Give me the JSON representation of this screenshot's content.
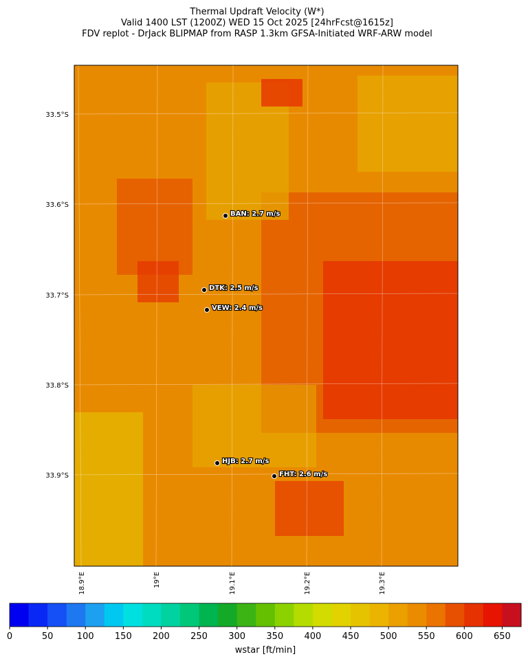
{
  "header": {
    "title_lines": [
      "Thermal Updraft Velocity (W*)",
      "Valid 1400 LST (1200Z) WED 15 Oct 2025 [24hrFcst@1615z]",
      "FDV replot - DrJack BLIPMAP from RASP 1.3km GFSA-Initiated WRF-ARW model"
    ]
  },
  "map": {
    "lat_labels": [
      "33.5°S",
      "33.6°S",
      "33.7°S",
      "33.8°S",
      "33.9°S"
    ],
    "lon_labels": [
      "18.9°E",
      "19°E",
      "19.1°E",
      "19.2°E",
      "19.3°E"
    ],
    "stations": [
      {
        "label": "BAN: 2.7 m/s"
      },
      {
        "label": "DTK: 2.5 m/s"
      },
      {
        "label": "VEW: 2.4 m/s"
      },
      {
        "label": "HJB: 2.7 m/s"
      },
      {
        "label": "FHT: 2.6 m/s"
      }
    ]
  },
  "colorbar": {
    "label": "wstar [ft/min]",
    "lim": [
      0,
      675
    ],
    "ticks": [
      0,
      50,
      100,
      150,
      200,
      250,
      300,
      350,
      400,
      450,
      500,
      550,
      600,
      650
    ],
    "colors": [
      "#0000f0",
      "#0a28f5",
      "#1450f5",
      "#1e78f0",
      "#1ea0f0",
      "#00c8f0",
      "#00e0e0",
      "#00dcc0",
      "#00d2a0",
      "#00c878",
      "#00b450",
      "#14aa28",
      "#3cb414",
      "#64c000",
      "#8cd200",
      "#b4dc00",
      "#d2dc00",
      "#e1d200",
      "#e6c300",
      "#ebb400",
      "#eba000",
      "#eb8c00",
      "#eb7300",
      "#e65000",
      "#e63200",
      "#e61400",
      "#c80f1e"
    ]
  }
}
